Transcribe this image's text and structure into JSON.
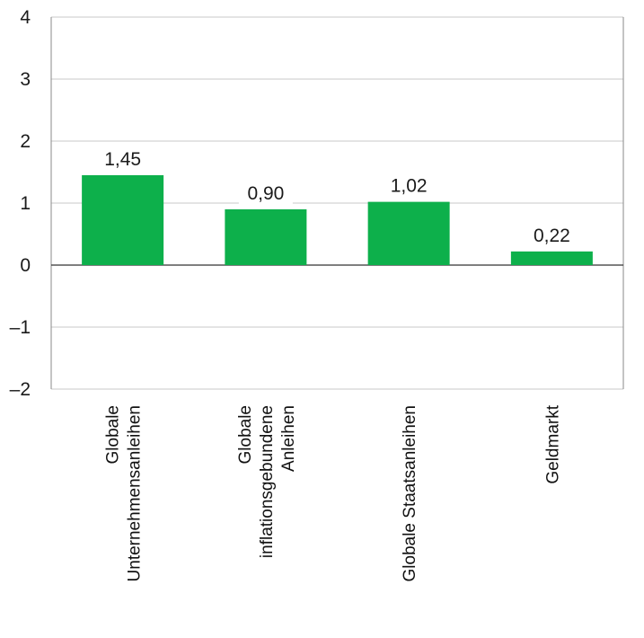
{
  "chart_data": {
    "type": "bar",
    "categories": [
      [
        "Globale",
        "Unternehmensanleihen"
      ],
      [
        "Globale",
        "inflationsgebundene",
        "Anleihen"
      ],
      [
        "Globale Staatsanleihen"
      ],
      [
        "Geldmarkt"
      ]
    ],
    "values": [
      1.45,
      0.9,
      1.02,
      0.22
    ],
    "data_labels": [
      "1,45",
      "0,90",
      "1,02",
      "0,22"
    ],
    "ylim": [
      -2,
      4
    ],
    "yticks": [
      4,
      3,
      2,
      1,
      0,
      -1,
      -2
    ],
    "ytick_labels": [
      "4",
      "3",
      "2",
      "1",
      "0",
      "–1",
      "–2"
    ],
    "grid": true,
    "bar_color": "#0db04b",
    "title": "",
    "xlabel": "",
    "ylabel": ""
  }
}
